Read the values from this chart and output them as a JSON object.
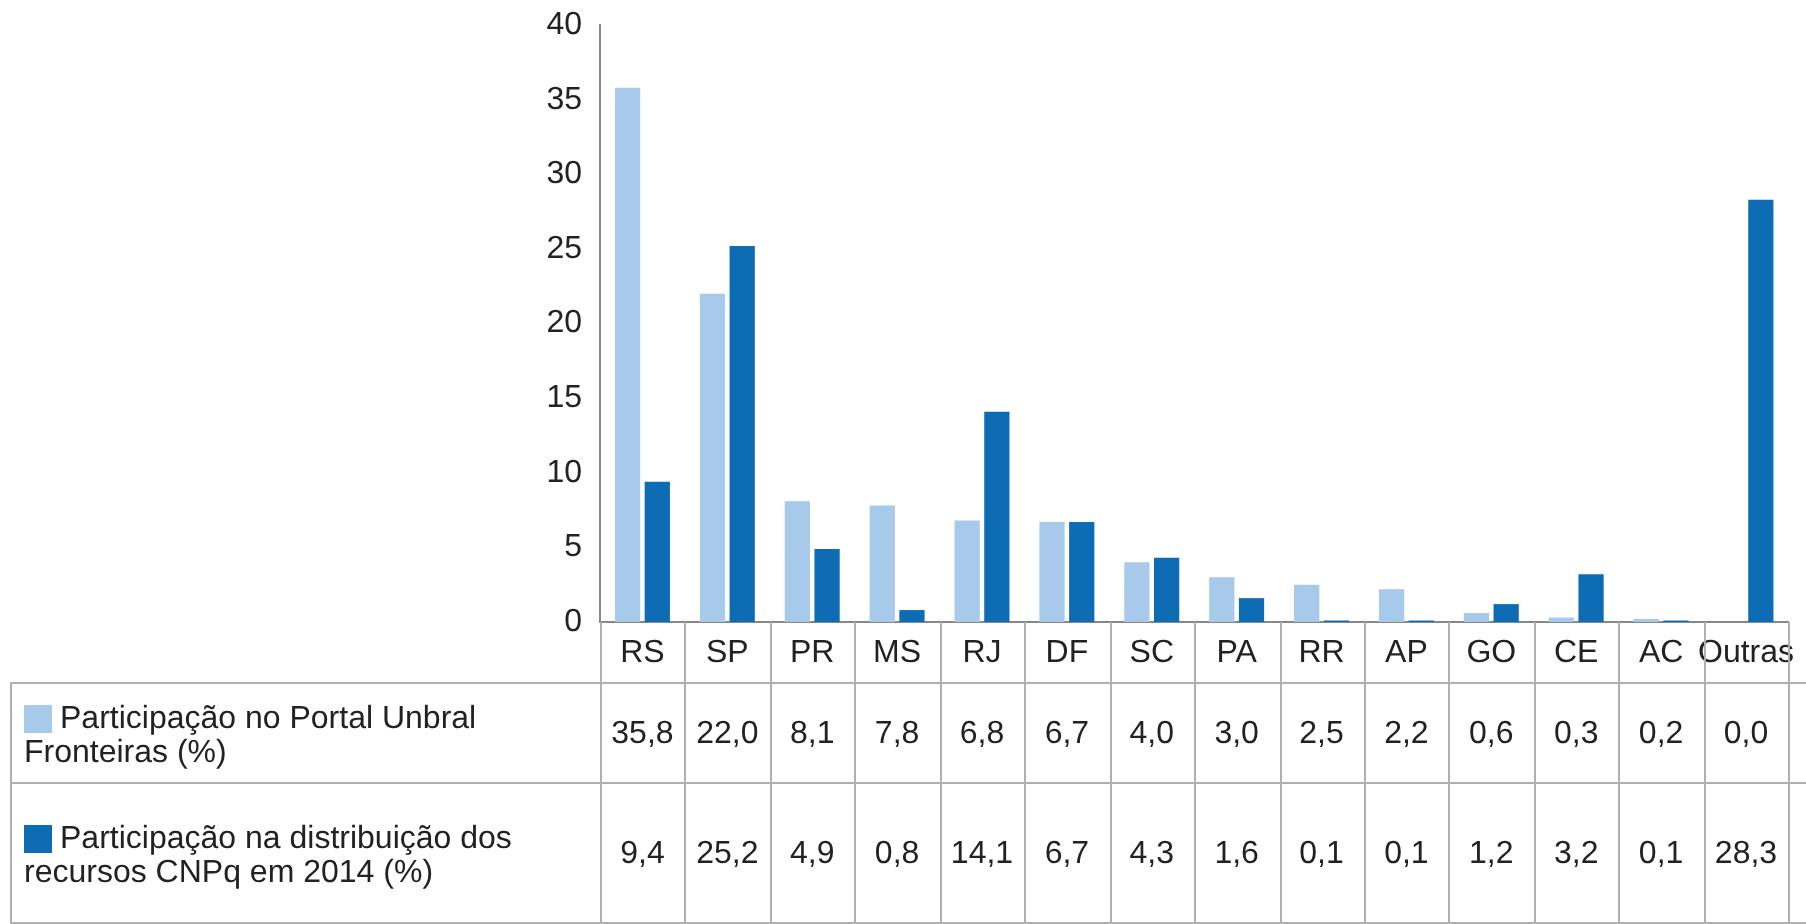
{
  "chart_data": {
    "type": "bar",
    "categories": [
      "RS",
      "SP",
      "PR",
      "MS",
      "RJ",
      "DF",
      "SC",
      "PA",
      "RR",
      "AP",
      "GO",
      "CE",
      "AC",
      "Outras"
    ],
    "series": [
      {
        "name": "Participação no Portal Unbral Fronteiras (%)",
        "color": "#a7c9ea",
        "values": [
          35.8,
          22.0,
          8.1,
          7.8,
          6.8,
          6.7,
          4.0,
          3.0,
          2.5,
          2.2,
          0.6,
          0.3,
          0.2,
          0.0
        ],
        "value_labels": [
          "35,8",
          "22,0",
          "8,1",
          "7,8",
          "6,8",
          "6,7",
          "4,0",
          "3,0",
          "2,5",
          "2,2",
          "0,6",
          "0,3",
          "0,2",
          "0,0"
        ]
      },
      {
        "name": "Participação na distribuição dos recursos CNPq em 2014 (%)",
        "color": "#0e6cb4",
        "values": [
          9.4,
          25.2,
          4.9,
          0.8,
          14.1,
          6.7,
          4.3,
          1.6,
          0.1,
          0.1,
          1.2,
          3.2,
          0.1,
          28.3
        ],
        "value_labels": [
          "9,4",
          "25,2",
          "4,9",
          "0,8",
          "14,1",
          "6,7",
          "4,3",
          "1,6",
          "0,1",
          "0,1",
          "1,2",
          "3,2",
          "0,1",
          "28,3"
        ]
      }
    ],
    "ylim": [
      0,
      40
    ],
    "yticks": [
      0,
      5,
      10,
      15,
      20,
      25,
      30,
      35,
      40
    ],
    "grid": false,
    "legend": "bottom"
  }
}
